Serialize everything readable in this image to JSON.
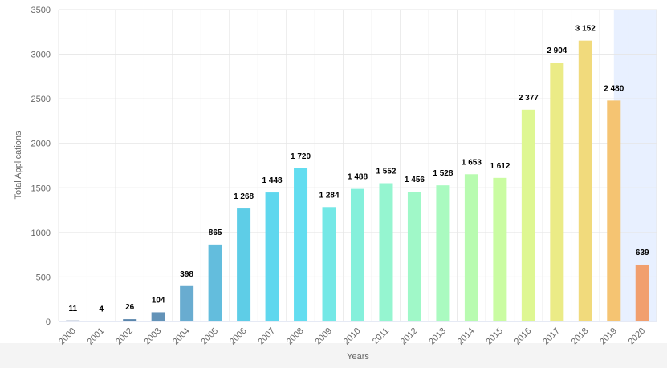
{
  "chart_data": {
    "type": "bar",
    "x_label": "Years",
    "y_label": "Total Applications",
    "categories": [
      "2000",
      "2001",
      "2002",
      "2003",
      "2004",
      "2005",
      "2006",
      "2007",
      "2008",
      "2009",
      "2010",
      "2011",
      "2012",
      "2013",
      "2014",
      "2015",
      "2016",
      "2017",
      "2018",
      "2019",
      "2020"
    ],
    "values": [
      11,
      4,
      26,
      104,
      398,
      865,
      1268,
      1448,
      1720,
      1284,
      1488,
      1552,
      1456,
      1528,
      1653,
      1612,
      2377,
      2904,
      3152,
      2480,
      639
    ],
    "value_labels": [
      "11",
      "4",
      "26",
      "104",
      "398",
      "865",
      "1 268",
      "1 448",
      "1 720",
      "1 284",
      "1 488",
      "1 552",
      "1 456",
      "1 528",
      "1 653",
      "1 612",
      "2 377",
      "2 904",
      "3 152",
      "2 480",
      "639"
    ],
    "colors": [
      "#4f6f96",
      "#557aa0",
      "#5a86ac",
      "#6393b8",
      "#69acd0",
      "#63bddd",
      "#5ecde7",
      "#5fd7ee",
      "#62ddf0",
      "#74e8e6",
      "#85f0db",
      "#95f5d0",
      "#a0f8c8",
      "#aafac0",
      "#b8fbb0",
      "#cafca2",
      "#def792",
      "#ebeb86",
      "#f1da7c",
      "#f5c472",
      "#f19f6e"
    ],
    "highlight": [
      "2019",
      "2020"
    ],
    "highlight_color": "#e8f0ff",
    "ylim": [
      0,
      3500
    ],
    "yticks": [
      0,
      500,
      1000,
      1500,
      2000,
      2500,
      3000,
      3500
    ],
    "grid": true
  }
}
